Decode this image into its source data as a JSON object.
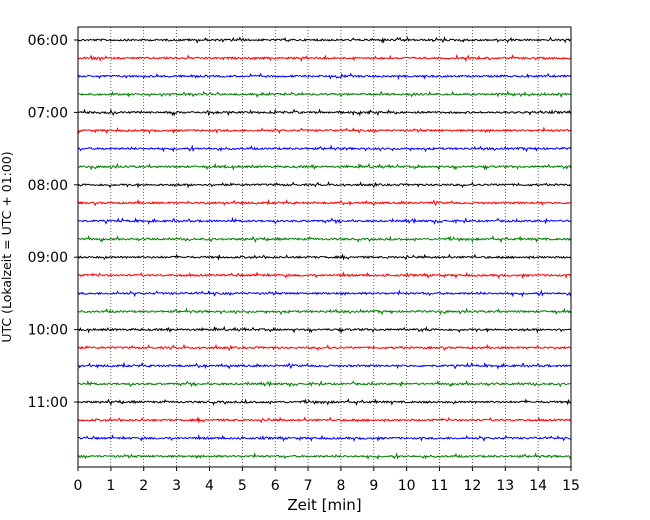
{
  "chart_data": {
    "type": "line",
    "title": "",
    "xlabel": "Zeit  [min]",
    "ylabel": "UTC (Lokalzeit = UTC + 01:00)",
    "xlim": [
      0,
      15
    ],
    "x_ticks": [
      0,
      1,
      2,
      3,
      4,
      5,
      6,
      7,
      8,
      9,
      10,
      11,
      12,
      13,
      14,
      15
    ],
    "grid": "vertical dotted",
    "y_ticks": [
      {
        "label": "06:00",
        "row": 0
      },
      {
        "label": "07:00",
        "row": 4
      },
      {
        "label": "08:00",
        "row": 8
      },
      {
        "label": "09:00",
        "row": 12
      },
      {
        "label": "10:00",
        "row": 16
      },
      {
        "label": "11:00",
        "row": 20
      }
    ],
    "trace_interval_min": 15,
    "start_time_utc": "06:00",
    "colors_cycle": [
      "#000000",
      "#ff0000",
      "#0000ff",
      "#008000"
    ],
    "series": [
      {
        "start": "06:00",
        "color": "#000000"
      },
      {
        "start": "06:15",
        "color": "#ff0000"
      },
      {
        "start": "06:30",
        "color": "#0000ff"
      },
      {
        "start": "06:45",
        "color": "#008000"
      },
      {
        "start": "07:00",
        "color": "#000000"
      },
      {
        "start": "07:15",
        "color": "#ff0000"
      },
      {
        "start": "07:30",
        "color": "#0000ff"
      },
      {
        "start": "07:45",
        "color": "#008000"
      },
      {
        "start": "08:00",
        "color": "#000000"
      },
      {
        "start": "08:15",
        "color": "#ff0000"
      },
      {
        "start": "08:30",
        "color": "#0000ff"
      },
      {
        "start": "08:45",
        "color": "#008000"
      },
      {
        "start": "09:00",
        "color": "#000000"
      },
      {
        "start": "09:15",
        "color": "#ff0000"
      },
      {
        "start": "09:30",
        "color": "#0000ff"
      },
      {
        "start": "09:45",
        "color": "#008000"
      },
      {
        "start": "10:00",
        "color": "#000000"
      },
      {
        "start": "10:15",
        "color": "#ff0000"
      },
      {
        "start": "10:30",
        "color": "#0000ff"
      },
      {
        "start": "10:45",
        "color": "#008000"
      },
      {
        "start": "11:00",
        "color": "#000000"
      },
      {
        "start": "11:15",
        "color": "#ff0000"
      },
      {
        "start": "11:30",
        "color": "#0000ff"
      },
      {
        "start": "11:45",
        "color": "#008000"
      }
    ]
  }
}
